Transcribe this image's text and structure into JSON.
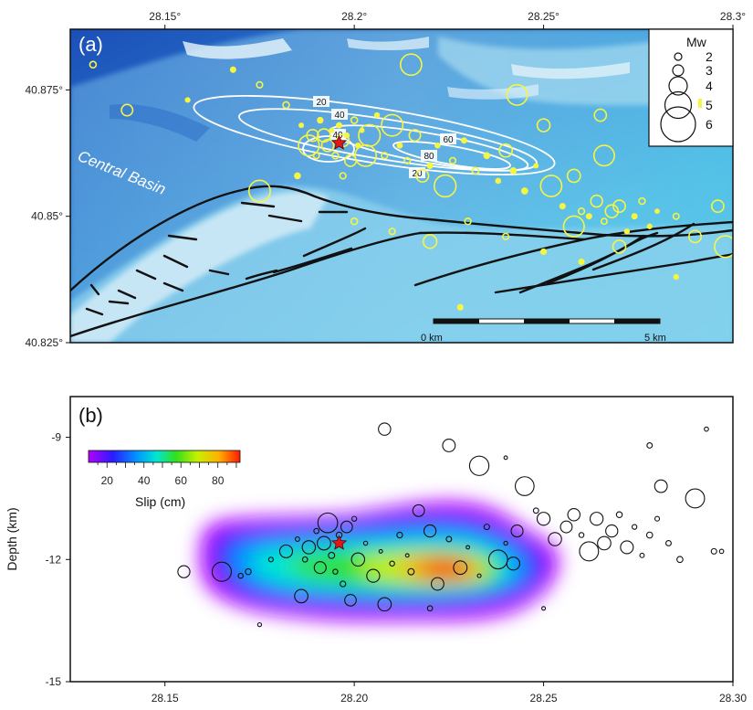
{
  "chart_data": [
    {
      "type": "scatter",
      "panel": "(a)",
      "x_ticks": [
        "28.15°",
        "28.2°",
        "28.25°",
        "28.3°"
      ],
      "y_ticks": [
        "40.825°",
        "40.85°",
        "40.875°"
      ],
      "xlim": [
        28.125,
        28.3
      ],
      "ylim": [
        40.825,
        40.887
      ],
      "region_label": "Central Basin",
      "legend": {
        "title": "Mw",
        "entries": [
          {
            "label": "2",
            "mw": 2
          },
          {
            "label": "3",
            "mw": 3
          },
          {
            "label": "4",
            "mw": 4
          },
          {
            "label": "5",
            "mw": 5
          },
          {
            "label": "6",
            "mw": 6
          }
        ]
      },
      "scale_bar": {
        "start_label": "0 km",
        "end_label": "5 km"
      },
      "slip_contour_labels": [
        "20",
        "40",
        "40",
        "60",
        "80",
        "20"
      ],
      "mainshock": {
        "lon": 28.196,
        "lat": 40.8645
      },
      "events": [
        [
          28.131,
          40.88
        ],
        [
          28.14,
          40.871
        ],
        [
          28.156,
          40.873
        ],
        [
          28.168,
          40.879
        ],
        [
          28.175,
          40.876
        ],
        [
          28.182,
          40.872
        ],
        [
          28.186,
          40.868
        ],
        [
          28.188,
          40.864
        ],
        [
          28.189,
          40.866
        ],
        [
          28.19,
          40.862
        ],
        [
          28.191,
          40.869
        ],
        [
          28.192,
          40.866
        ],
        [
          28.193,
          40.864
        ],
        [
          28.194,
          40.867
        ],
        [
          28.195,
          40.862
        ],
        [
          28.196,
          40.868
        ],
        [
          28.197,
          40.865
        ],
        [
          28.198,
          40.866
        ],
        [
          28.199,
          40.861
        ],
        [
          28.2,
          40.869
        ],
        [
          28.201,
          40.864
        ],
        [
          28.202,
          40.867
        ],
        [
          28.203,
          40.862
        ],
        [
          28.204,
          40.866
        ],
        [
          28.206,
          40.87
        ],
        [
          28.208,
          40.862
        ],
        [
          28.21,
          40.868
        ],
        [
          28.212,
          40.864
        ],
        [
          28.214,
          40.861
        ],
        [
          28.216,
          40.866
        ],
        [
          28.218,
          40.858
        ],
        [
          28.22,
          40.86
        ],
        [
          28.222,
          40.864
        ],
        [
          28.224,
          40.856
        ],
        [
          28.226,
          40.861
        ],
        [
          28.229,
          40.865
        ],
        [
          28.232,
          40.859
        ],
        [
          28.235,
          40.862
        ],
        [
          28.238,
          40.857
        ],
        [
          28.24,
          40.863
        ],
        [
          28.242,
          40.859
        ],
        [
          28.245,
          40.855
        ],
        [
          28.248,
          40.86
        ],
        [
          28.252,
          40.856
        ],
        [
          28.255,
          40.852
        ],
        [
          28.258,
          40.848
        ],
        [
          28.26,
          40.851
        ],
        [
          28.262,
          40.85
        ],
        [
          28.264,
          40.853
        ],
        [
          28.266,
          40.849
        ],
        [
          28.268,
          40.851
        ],
        [
          28.27,
          40.852
        ],
        [
          28.272,
          40.847
        ],
        [
          28.274,
          40.85
        ],
        [
          28.276,
          40.853
        ],
        [
          28.278,
          40.848
        ],
        [
          28.28,
          40.851
        ],
        [
          28.285,
          40.85
        ],
        [
          28.29,
          40.846
        ],
        [
          28.296,
          40.852
        ],
        [
          28.175,
          40.855
        ],
        [
          28.185,
          40.858
        ],
        [
          28.197,
          40.858
        ],
        [
          28.2,
          40.849
        ],
        [
          28.21,
          40.847
        ],
        [
          28.22,
          40.845
        ],
        [
          28.23,
          40.849
        ],
        [
          28.24,
          40.846
        ],
        [
          28.25,
          40.843
        ],
        [
          28.26,
          40.841
        ],
        [
          28.27,
          40.844
        ],
        [
          28.285,
          40.838
        ],
        [
          28.228,
          40.832
        ],
        [
          28.258,
          40.858
        ],
        [
          28.266,
          40.862
        ],
        [
          28.298,
          40.844
        ],
        [
          28.215,
          40.88
        ],
        [
          28.243,
          40.874
        ],
        [
          28.25,
          40.868
        ],
        [
          28.265,
          40.87
        ],
        [
          28.282,
          40.866
        ]
      ]
    },
    {
      "type": "scatter",
      "panel": "(b)",
      "ylabel": "Depth (km)",
      "x_ticks": [
        "28.15",
        "28.20",
        "28.25",
        "28.30"
      ],
      "y_ticks": [
        "-9",
        "-12",
        "-15"
      ],
      "xlim": [
        28.125,
        28.3
      ],
      "ylim": [
        -15,
        -8
      ],
      "colorbar": {
        "label": "Slip (cm)",
        "ticks": [
          "20",
          "40",
          "60",
          "80"
        ],
        "range": [
          10,
          92
        ]
      },
      "slip_peak": {
        "x": 28.225,
        "depth": -12.25,
        "slip_cm": 90
      },
      "mainshock": {
        "x": 28.196,
        "depth": -11.6
      },
      "hypocenters": [
        [
          28.155,
          -12.3
        ],
        [
          28.165,
          -12.3
        ],
        [
          28.17,
          -12.4
        ],
        [
          28.175,
          -13.6
        ],
        [
          28.178,
          -12.0
        ],
        [
          28.182,
          -11.8
        ],
        [
          28.185,
          -11.5
        ],
        [
          28.187,
          -12.0
        ],
        [
          28.188,
          -11.7
        ],
        [
          28.19,
          -11.3
        ],
        [
          28.191,
          -12.2
        ],
        [
          28.192,
          -11.6
        ],
        [
          28.193,
          -11.1
        ],
        [
          28.194,
          -11.9
        ],
        [
          28.195,
          -12.3
        ],
        [
          28.196,
          -11.4
        ],
        [
          28.197,
          -12.6
        ],
        [
          28.198,
          -11.2
        ],
        [
          28.2,
          -11.0
        ],
        [
          28.201,
          -12.0
        ],
        [
          28.203,
          -11.6
        ],
        [
          28.205,
          -12.4
        ],
        [
          28.207,
          -11.8
        ],
        [
          28.21,
          -12.1
        ],
        [
          28.212,
          -11.4
        ],
        [
          28.215,
          -12.3
        ],
        [
          28.217,
          -10.8
        ],
        [
          28.22,
          -11.3
        ],
        [
          28.222,
          -12.6
        ],
        [
          28.225,
          -11.5
        ],
        [
          28.228,
          -12.2
        ],
        [
          28.23,
          -11.7
        ],
        [
          28.233,
          -12.4
        ],
        [
          28.235,
          -11.2
        ],
        [
          28.238,
          -12.0
        ],
        [
          28.24,
          -11.6
        ],
        [
          28.242,
          -12.1
        ],
        [
          28.243,
          -11.3
        ],
        [
          28.245,
          -10.2
        ],
        [
          28.248,
          -10.8
        ],
        [
          28.25,
          -11.0
        ],
        [
          28.253,
          -11.5
        ],
        [
          28.256,
          -11.2
        ],
        [
          28.258,
          -10.9
        ],
        [
          28.26,
          -11.4
        ],
        [
          28.262,
          -11.8
        ],
        [
          28.264,
          -11.0
        ],
        [
          28.266,
          -11.6
        ],
        [
          28.268,
          -11.3
        ],
        [
          28.27,
          -10.9
        ],
        [
          28.272,
          -11.7
        ],
        [
          28.274,
          -11.2
        ],
        [
          28.276,
          -11.9
        ],
        [
          28.278,
          -11.4
        ],
        [
          28.28,
          -11.0
        ],
        [
          28.283,
          -11.6
        ],
        [
          28.286,
          -12.0
        ],
        [
          28.29,
          -10.5
        ],
        [
          28.295,
          -11.8
        ],
        [
          28.297,
          -11.8
        ],
        [
          28.208,
          -8.8
        ],
        [
          28.225,
          -9.2
        ],
        [
          28.233,
          -9.7
        ],
        [
          28.24,
          -9.5
        ],
        [
          28.281,
          -10.2
        ],
        [
          28.293,
          -8.8
        ],
        [
          28.278,
          -9.2
        ],
        [
          28.208,
          -13.1
        ],
        [
          28.22,
          -13.2
        ],
        [
          28.25,
          -13.2
        ],
        [
          28.172,
          -12.3
        ],
        [
          28.186,
          -12.9
        ],
        [
          28.199,
          -13.0
        ],
        [
          28.214,
          -11.9
        ]
      ]
    }
  ]
}
